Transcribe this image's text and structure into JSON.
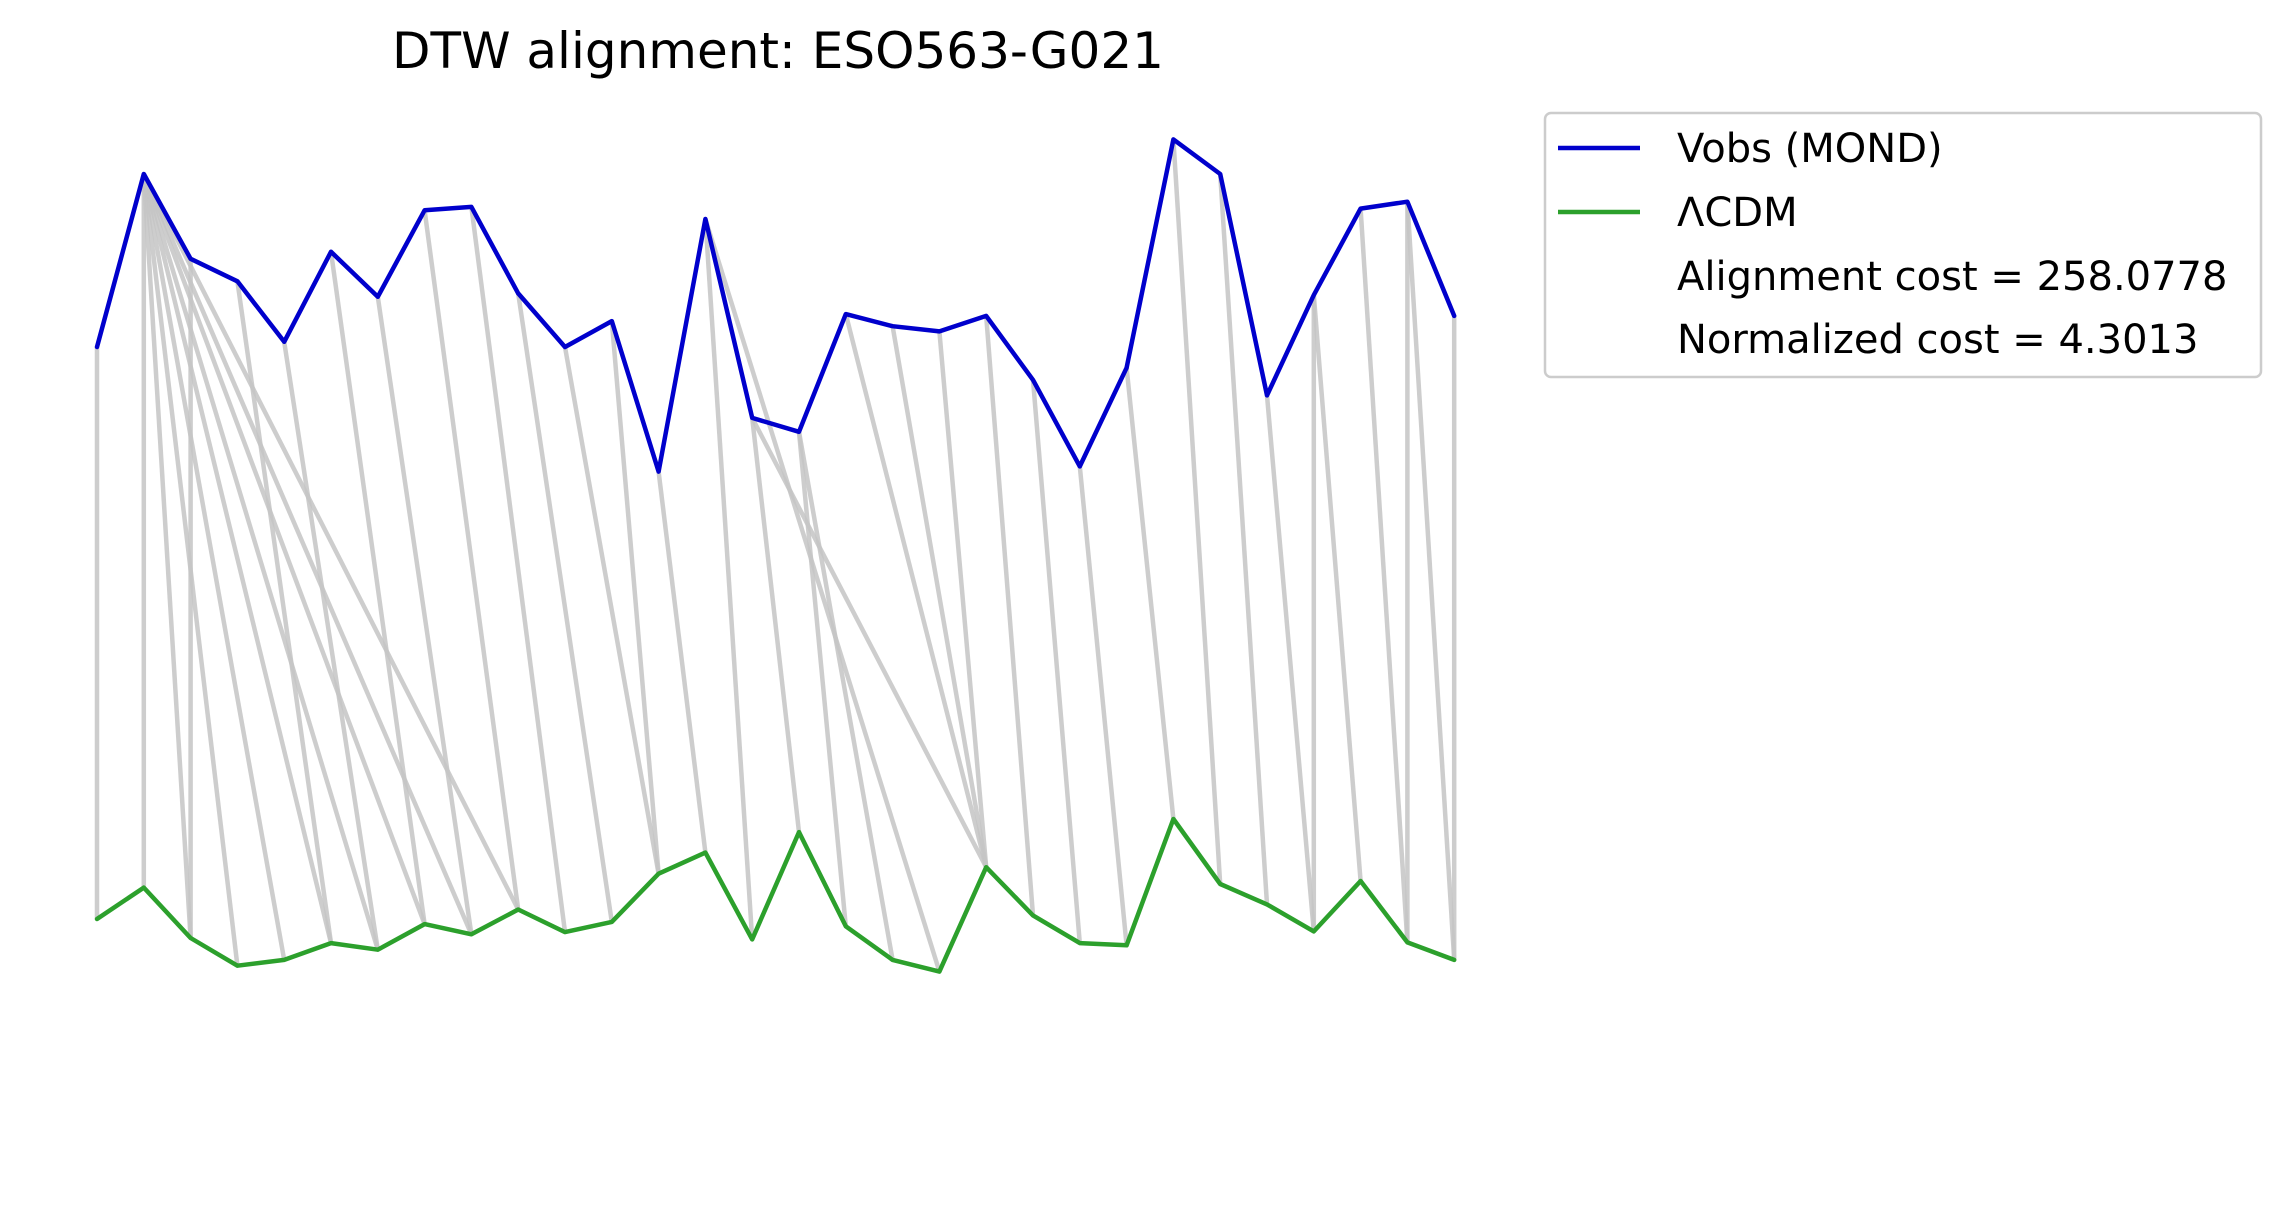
{
  "chart_data": {
    "type": "line",
    "title": "DTW alignment: ESO563-G021",
    "xlabel": "",
    "ylabel": "",
    "axes_visible": false,
    "grid": false,
    "legend_placement": "outside upper right",
    "series": [
      {
        "name": "Vobs (MOND)",
        "color": "#0000cc",
        "y": [
          0.0,
          1.0,
          0.51,
          0.38,
          0.03,
          0.55,
          0.29,
          0.79,
          0.81,
          0.31,
          0.0,
          0.15,
          -0.72,
          0.74,
          -0.41,
          -0.49,
          0.19,
          0.12,
          0.09,
          0.18,
          -0.19,
          -0.69,
          -0.12,
          1.2,
          1.0,
          -0.28,
          0.3,
          0.8,
          0.84,
          0.18
        ]
      },
      {
        "name": "ΛCDM",
        "color": "#2ca02c",
        "y": [
          0.0,
          -0.43,
          0.26,
          0.64,
          0.56,
          0.33,
          0.42,
          0.07,
          0.21,
          -0.13,
          0.18,
          0.04,
          -0.62,
          -0.91,
          0.28,
          -1.19,
          0.1,
          0.56,
          0.72,
          -0.71,
          -0.05,
          0.33,
          0.36,
          -1.37,
          -0.48,
          -0.2,
          0.17,
          -0.52,
          0.32,
          0.56
        ]
      }
    ],
    "alignment_path": [
      [
        0,
        0
      ],
      [
        1,
        1
      ],
      [
        1,
        2
      ],
      [
        1,
        3
      ],
      [
        1,
        4
      ],
      [
        1,
        5
      ],
      [
        1,
        6
      ],
      [
        1,
        7
      ],
      [
        1,
        8
      ],
      [
        1,
        9
      ],
      [
        2,
        2
      ],
      [
        3,
        5
      ],
      [
        4,
        6
      ],
      [
        5,
        7
      ],
      [
        6,
        8
      ],
      [
        7,
        9
      ],
      [
        8,
        10
      ],
      [
        9,
        11
      ],
      [
        10,
        12
      ],
      [
        11,
        12
      ],
      [
        12,
        13
      ],
      [
        13,
        14
      ],
      [
        13,
        18
      ],
      [
        14,
        15
      ],
      [
        14,
        19
      ],
      [
        15,
        16
      ],
      [
        15,
        17
      ],
      [
        16,
        19
      ],
      [
        17,
        19
      ],
      [
        18,
        19
      ],
      [
        19,
        20
      ],
      [
        20,
        21
      ],
      [
        21,
        22
      ],
      [
        22,
        23
      ],
      [
        23,
        24
      ],
      [
        24,
        25
      ],
      [
        25,
        26
      ],
      [
        26,
        26
      ],
      [
        26,
        27
      ],
      [
        27,
        28
      ],
      [
        28,
        28
      ],
      [
        28,
        29
      ],
      [
        29,
        29
      ]
    ],
    "alignment_color": "#c4c4c4",
    "annotations": [
      "Alignment cost = 258.0778",
      "Normalized cost = 4.3013"
    ]
  }
}
